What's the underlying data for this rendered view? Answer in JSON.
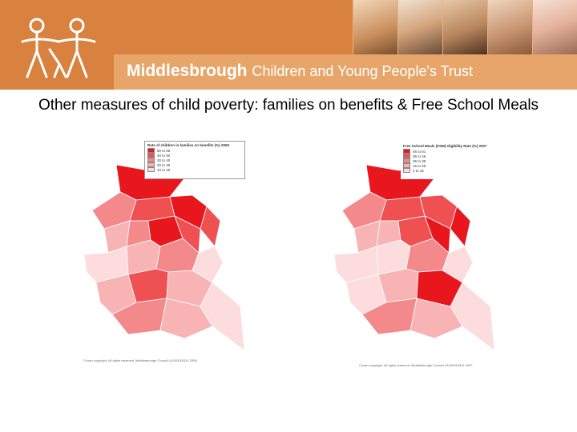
{
  "header": {
    "brand_bold": "Middlesbrough",
    "brand_rest": "Children and Young People's Trust",
    "photos": [
      "photo-child-1",
      "photo-child-2",
      "photo-child-3",
      "photo-child-4",
      "photo-child-5"
    ]
  },
  "slide": {
    "title": "Other measures of child poverty: families on benefits & Free School Meals"
  },
  "map_left": {
    "legend_title": "Rate of children in families on benefits (%) 2006",
    "legend": [
      {
        "label": "50 to 65",
        "color": "#e8161d"
      },
      {
        "label": "40 to 50",
        "color": "#ef5052"
      },
      {
        "label": "30 to 40",
        "color": "#f3898a"
      },
      {
        "label": "20 to 30",
        "color": "#f8b4b4"
      },
      {
        "label": "10 to 20",
        "color": "#fcdcdc"
      }
    ],
    "copyright": "Crown copyright. All rights reserved. Middlesbrough Council LA100019311 2006"
  },
  "map_right": {
    "legend_title": "Free School Meals (FSM) eligibility Rate (%) 2007",
    "legend": [
      {
        "label": "46 to 61",
        "color": "#e8161d"
      },
      {
        "label": "35 to 46",
        "color": "#ef5052"
      },
      {
        "label": "25 to 35",
        "color": "#f3898a"
      },
      {
        "label": "15 to 25",
        "color": "#f8b4b4"
      },
      {
        "label": "4 to 15",
        "color": "#fcdcdc"
      }
    ],
    "copyright": "Crown copyright. All rights reserved. Middlesbrough Council LA100019311 2007"
  }
}
